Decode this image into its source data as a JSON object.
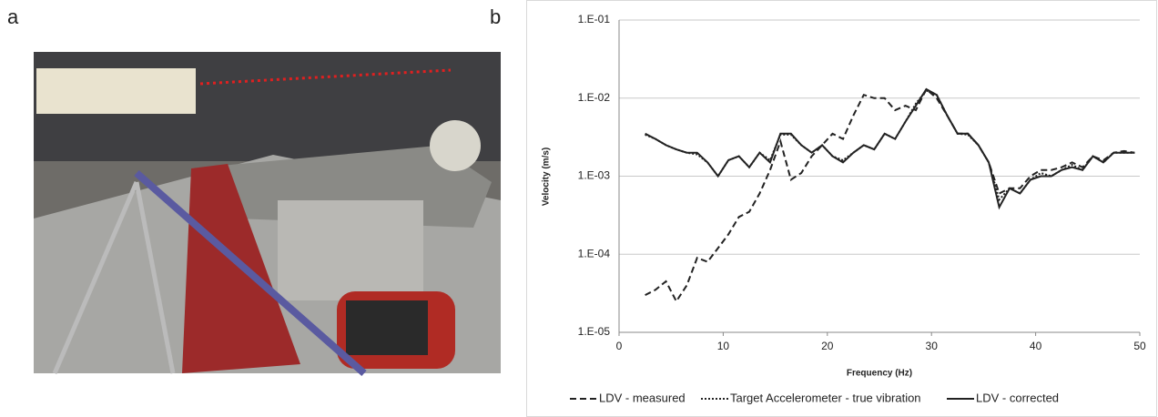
{
  "panel_labels": [
    "a",
    "b"
  ],
  "chart_data": {
    "type": "line",
    "x_label": "Frequency (Hz)",
    "y_label": "Velocity (m/s)",
    "log_y": true,
    "grid": true,
    "legend": "bottom",
    "xlim": [
      0,
      50
    ],
    "xticks": [
      0,
      10,
      20,
      30,
      40,
      50
    ],
    "ylim": [
      1e-05,
      0.1
    ],
    "yticks": [
      {
        "value": 1e-05,
        "label": "1.E-05"
      },
      {
        "value": 0.0001,
        "label": "1.E-04"
      },
      {
        "value": 0.001,
        "label": "1.E-03"
      },
      {
        "value": 0.01,
        "label": "1.E-02"
      },
      {
        "value": 0.1,
        "label": "1.E-01"
      }
    ],
    "x": [
      2.5,
      3.5,
      4.5,
      5.5,
      6.5,
      7.5,
      8.5,
      9.5,
      10.5,
      11.5,
      12.5,
      13.5,
      14.5,
      15.5,
      16.5,
      17.5,
      18.5,
      19.5,
      20.5,
      21.5,
      22.5,
      23.5,
      24.5,
      25.5,
      26.5,
      27.5,
      28.5,
      29.5,
      30.5,
      31.5,
      32.5,
      33.5,
      34.5,
      35.5,
      36.5,
      37.5,
      38.5,
      39.5,
      40.5,
      41.5,
      42.5,
      43.5,
      44.5,
      45.5,
      46.5,
      47.5,
      48.5,
      49.5
    ],
    "series": [
      {
        "name": "LDV - measured",
        "color": "#222222",
        "dash": "dashed",
        "values": [
          3e-05,
          3.5e-05,
          4.5e-05,
          2.5e-05,
          4e-05,
          9e-05,
          8e-05,
          0.00012,
          0.00018,
          0.0003,
          0.00035,
          0.0006,
          0.0012,
          0.0028,
          0.0009,
          0.0011,
          0.0018,
          0.0025,
          0.0035,
          0.003,
          0.006,
          0.011,
          0.01,
          0.01,
          0.007,
          0.008,
          0.007,
          0.013,
          0.01,
          0.006,
          0.0035,
          0.0035,
          0.0025,
          0.0015,
          0.0006,
          0.0007,
          0.0007,
          0.001,
          0.0012,
          0.0012,
          0.0013,
          0.0015,
          0.0013,
          0.0018,
          0.0016,
          0.002,
          0.0021,
          0.002
        ]
      },
      {
        "name": "Target Accelerometer - true vibration",
        "color": "#222222",
        "dash": "dotted",
        "values": [
          0.0034,
          0.003,
          0.0025,
          0.0022,
          0.002,
          0.0019,
          0.0015,
          0.001,
          0.0016,
          0.0018,
          0.0013,
          0.002,
          0.0016,
          0.0034,
          0.0034,
          0.0025,
          0.002,
          0.0025,
          0.0018,
          0.0016,
          0.002,
          0.0025,
          0.0022,
          0.0035,
          0.003,
          0.005,
          0.0085,
          0.0125,
          0.011,
          0.006,
          0.0035,
          0.0034,
          0.0025,
          0.0015,
          0.0005,
          0.0007,
          0.0006,
          0.0009,
          0.0011,
          0.001,
          0.0012,
          0.0014,
          0.0012,
          0.0018,
          0.0015,
          0.002,
          0.002,
          0.002
        ]
      },
      {
        "name": "LDV - corrected",
        "color": "#222222",
        "dash": "solid",
        "values": [
          0.0035,
          0.003,
          0.0025,
          0.0022,
          0.002,
          0.002,
          0.0015,
          0.001,
          0.0016,
          0.0018,
          0.0013,
          0.002,
          0.0015,
          0.0035,
          0.0035,
          0.0025,
          0.002,
          0.0025,
          0.0018,
          0.0015,
          0.002,
          0.0025,
          0.0022,
          0.0035,
          0.003,
          0.005,
          0.008,
          0.013,
          0.011,
          0.006,
          0.0035,
          0.0035,
          0.0025,
          0.0015,
          0.0004,
          0.0007,
          0.0006,
          0.0009,
          0.001,
          0.001,
          0.0012,
          0.0013,
          0.0012,
          0.0018,
          0.0015,
          0.002,
          0.002,
          0.002
        ]
      }
    ]
  }
}
